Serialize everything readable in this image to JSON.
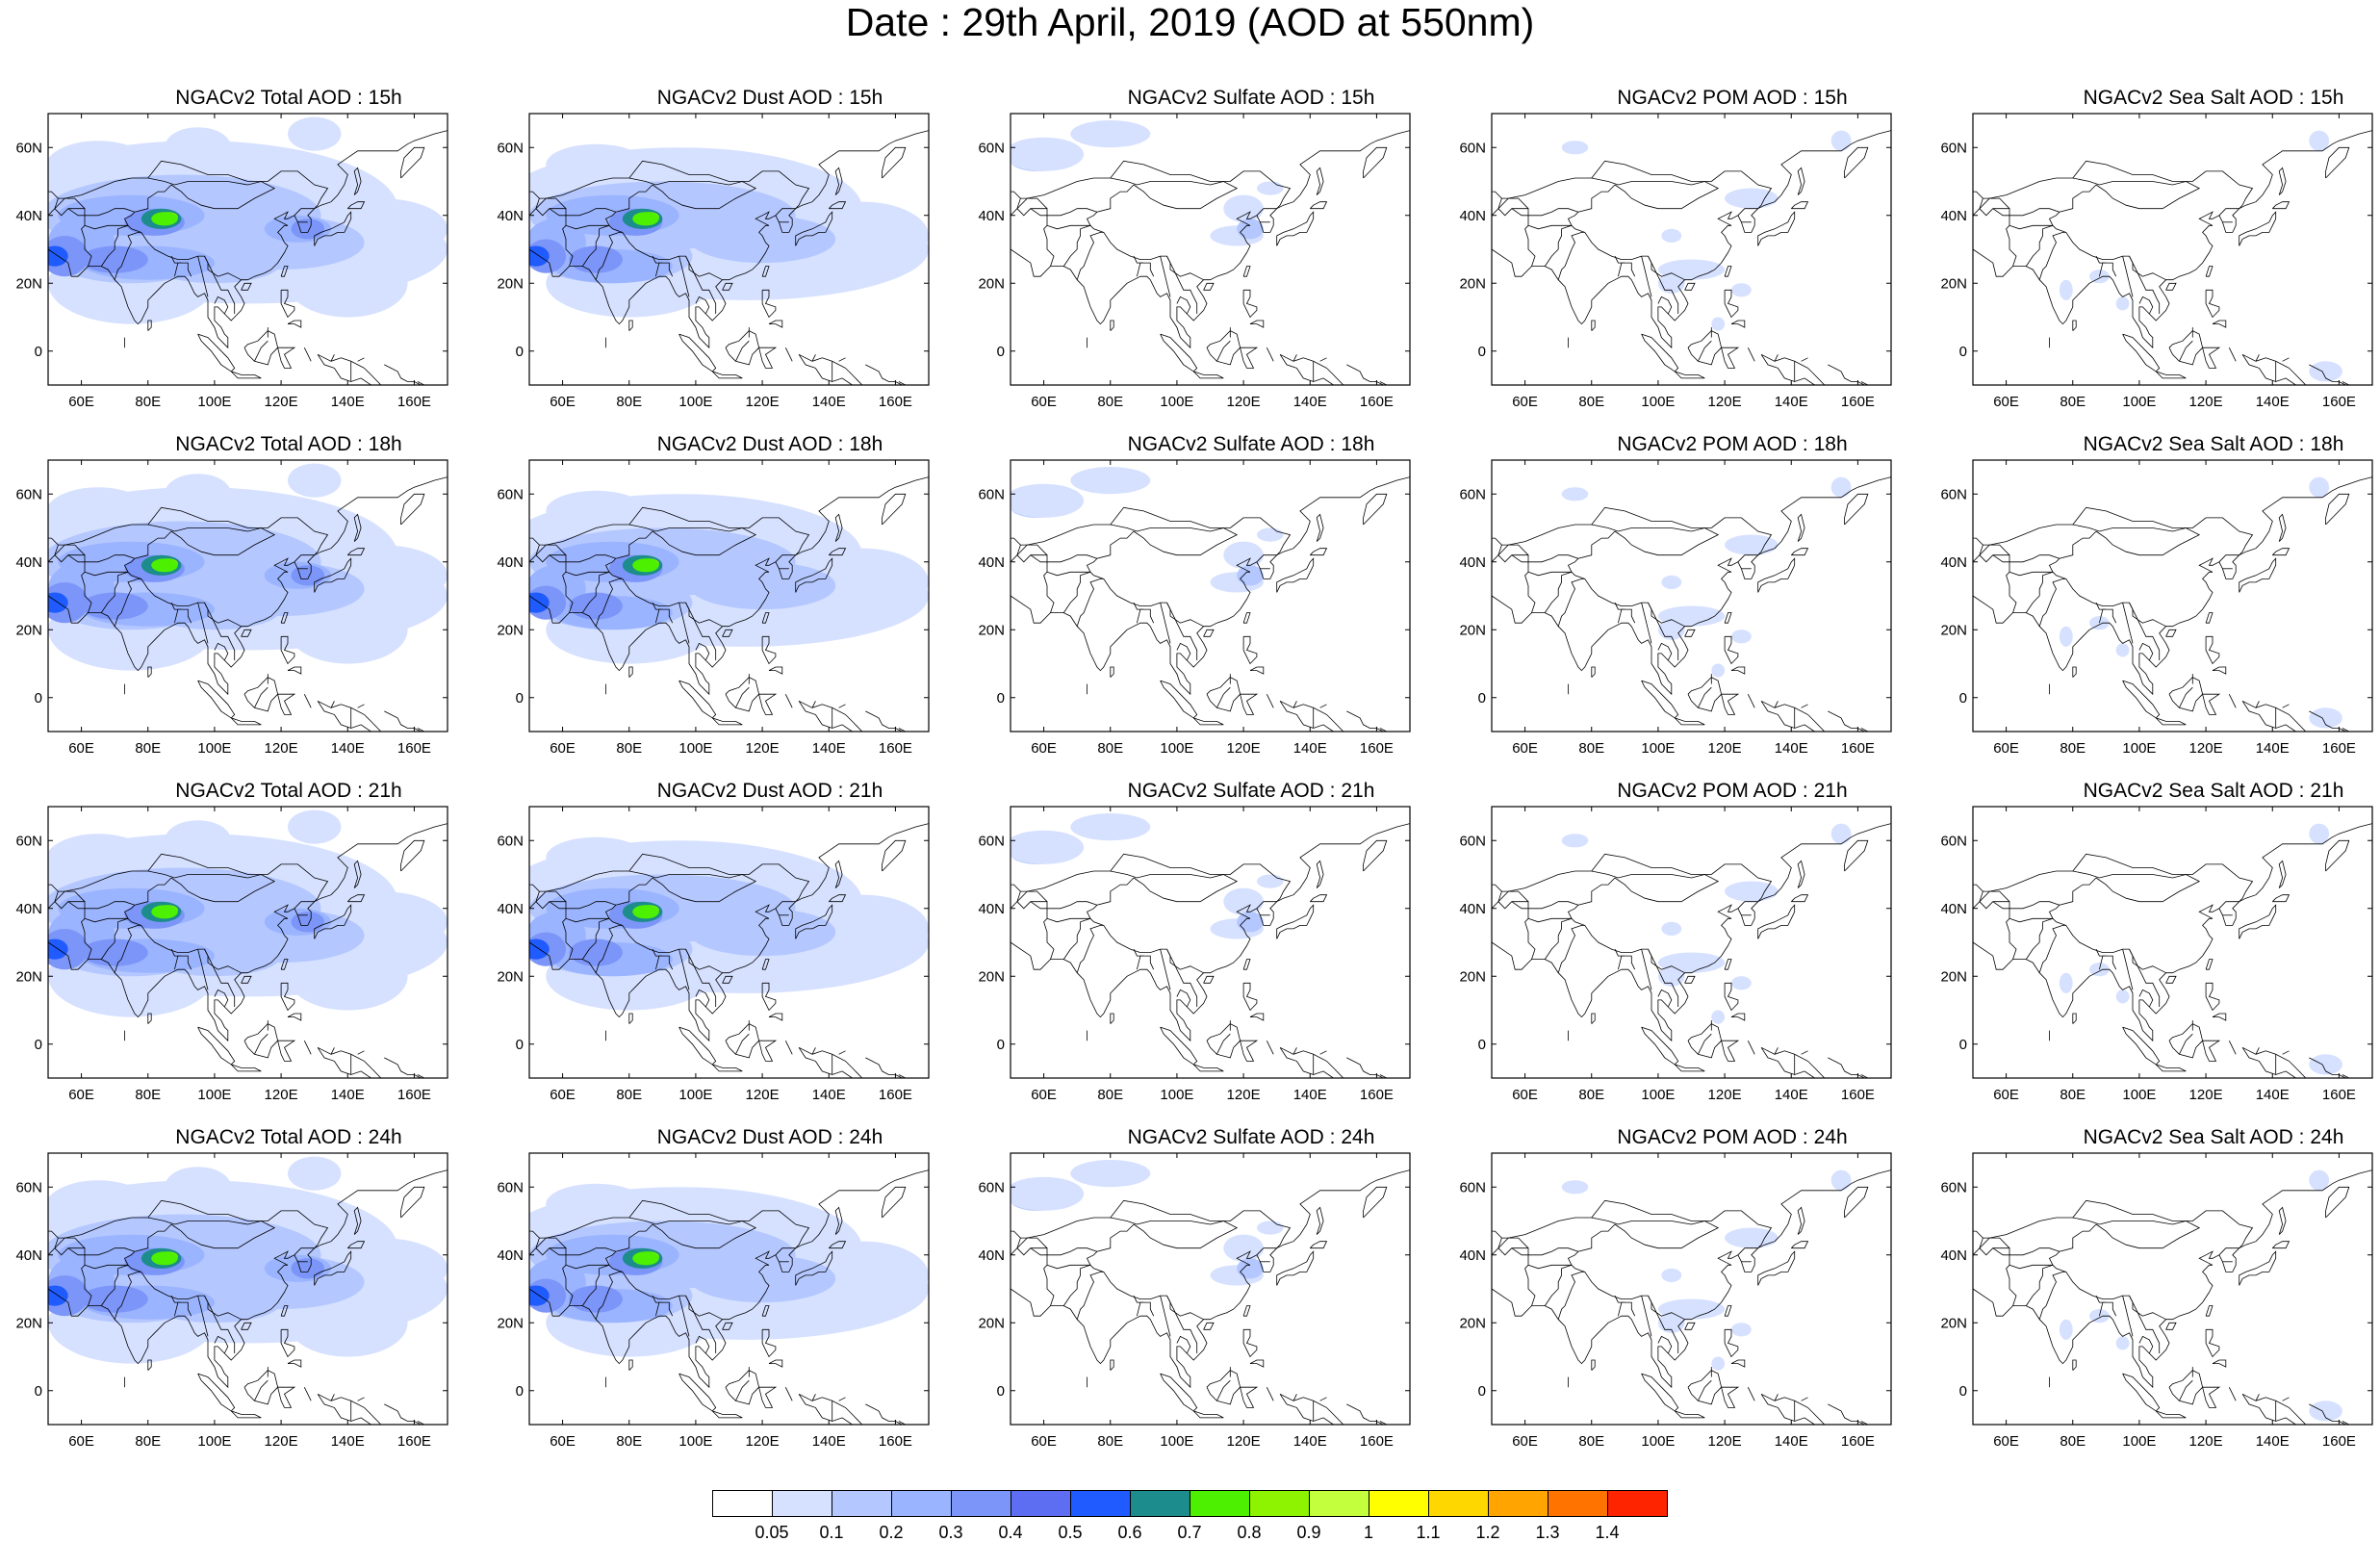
{
  "title": "Date : 29th April, 2019 (AOD at 550nm)",
  "panels": [
    [
      "NGACv2 Total AOD : 15h",
      "NGACv2 Dust AOD : 15h",
      "NGACv2 Sulfate AOD : 15h",
      "NGACv2 POM AOD : 15h",
      "NGACv2 Sea Salt AOD : 15h"
    ],
    [
      "NGACv2 Total AOD : 18h",
      "NGACv2 Dust AOD : 18h",
      "NGACv2 Sulfate AOD : 18h",
      "NGACv2 POM AOD : 18h",
      "NGACv2 Sea Salt AOD : 18h"
    ],
    [
      "NGACv2 Total AOD : 21h",
      "NGACv2 Dust AOD : 21h",
      "NGACv2 Sulfate AOD : 21h",
      "NGACv2 POM AOD : 21h",
      "NGACv2 Sea Salt AOD : 21h"
    ],
    [
      "NGACv2 Total AOD : 24h",
      "NGACv2 Dust AOD : 24h",
      "NGACv2 Sulfate AOD : 24h",
      "NGACv2 POM AOD : 24h",
      "NGACv2 Sea Salt  AOD : 24h"
    ]
  ],
  "map": {
    "lon_range": [
      50,
      170
    ],
    "lat_range": [
      -10,
      70
    ],
    "lon_ticks": [
      "60E",
      "80E",
      "100E",
      "120E",
      "140E",
      "160E"
    ],
    "lat_ticks": [
      "60N",
      "40N",
      "20N",
      "0"
    ]
  },
  "colorbar": {
    "labels": [
      "0.05",
      "0.1",
      "0.2",
      "0.3",
      "0.4",
      "0.5",
      "0.6",
      "0.7",
      "0.8",
      "0.9",
      "1",
      "1.1",
      "1.2",
      "1.3",
      "1.4"
    ],
    "colors": [
      "#ffffff",
      "#d6e1ff",
      "#b4c7ff",
      "#9bb4ff",
      "#7c95f8",
      "#5e6ef2",
      "#1f5bff",
      "#1c8c8c",
      "#4cf000",
      "#8df300",
      "#c3ff3c",
      "#ffff00",
      "#ffd700",
      "#ffa400",
      "#ff7400",
      "#ff2400"
    ]
  }
}
